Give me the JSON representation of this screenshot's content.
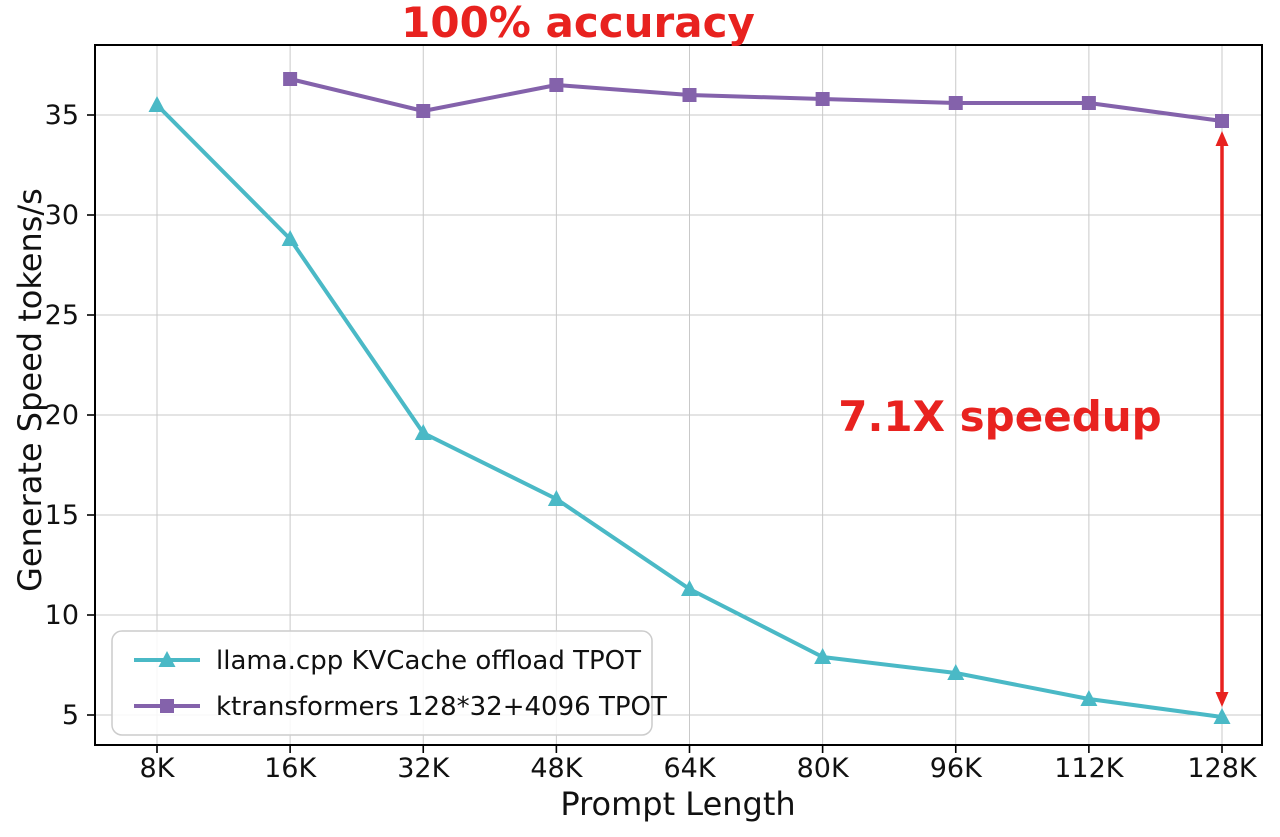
{
  "chart_data": {
    "type": "line",
    "title": "",
    "xlabel": "Prompt Length",
    "ylabel": "Generate Speed tokens/s",
    "categories": [
      "8K",
      "16K",
      "32K",
      "48K",
      "64K",
      "80K",
      "96K",
      "112K",
      "128K"
    ],
    "yticks": [
      5,
      10,
      15,
      20,
      25,
      30,
      35
    ],
    "ylim": [
      3.5,
      38.5
    ],
    "grid": true,
    "legend_position": "lower-left",
    "series": [
      {
        "name": "llama.cpp KVCache offload TPOT",
        "color": "#4ab9c6",
        "marker": "triangle",
        "values": [
          35.5,
          28.8,
          19.1,
          15.8,
          11.3,
          7.9,
          7.1,
          5.8,
          4.9
        ]
      },
      {
        "name": "ktransformers 128*32+4096 TPOT",
        "color": "#8462ab",
        "marker": "square",
        "values": [
          null,
          36.8,
          35.2,
          36.5,
          36.0,
          35.8,
          35.6,
          35.6,
          34.7
        ]
      }
    ],
    "annotations": [
      {
        "text": "100% accuracy",
        "color": "#e8221f",
        "placement": "top-center"
      },
      {
        "text": "7.1X speedup",
        "color": "#e8221f",
        "placement": "right-beside-arrow"
      }
    ],
    "arrow": {
      "category": "128K",
      "from_value": 4.9,
      "to_value": 34.7,
      "color": "#e8221f",
      "style": "double-headed-vertical"
    }
  }
}
